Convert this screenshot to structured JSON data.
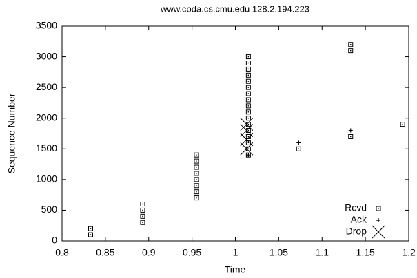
{
  "chart_data": {
    "type": "scatter",
    "title": "www.coda.cs.cmu.edu 128.2.194.223",
    "x_label": "Time",
    "y_label": "Sequence Number",
    "xlim": [
      0.8,
      1.2
    ],
    "xticks": [
      0.8,
      0.85,
      0.9,
      0.95,
      1,
      1.05,
      1.1,
      1.15,
      1.2
    ],
    "ylim": [
      0,
      3500
    ],
    "yticks": [
      0,
      500,
      1000,
      1500,
      2000,
      2500,
      3000,
      3500
    ],
    "legend": "bottom-right",
    "series": [
      {
        "name": "Rcvd",
        "marker": "square",
        "color": "#000000",
        "x": [
          0.833,
          0.833,
          0.893,
          0.893,
          0.893,
          0.893,
          0.955,
          0.955,
          0.955,
          0.955,
          0.955,
          0.955,
          0.955,
          0.955,
          1.015,
          1.015,
          1.015,
          1.015,
          1.015,
          1.015,
          1.015,
          1.015,
          1.015,
          1.015,
          1.015,
          1.015,
          1.015,
          1.015,
          1.015,
          1.015,
          1.015,
          1.073,
          1.133,
          1.133,
          1.133,
          1.193
        ],
        "values": [
          100,
          200,
          300,
          400,
          500,
          600,
          700,
          800,
          900,
          1000,
          1100,
          1200,
          1300,
          1400,
          1400,
          1500,
          1600,
          1700,
          1800,
          1900,
          2000,
          2100,
          2200,
          2300,
          2400,
          2500,
          2600,
          2700,
          2800,
          2900,
          3000,
          1500,
          1700,
          3100,
          3200,
          1900
        ]
      },
      {
        "name": "Ack",
        "marker": "plus",
        "color": "#000000",
        "x": [
          1.015,
          1.073,
          1.133
        ],
        "values": [
          1400,
          1600,
          1800
        ]
      },
      {
        "name": "Drop",
        "marker": "cross",
        "color": "#000000",
        "x": [
          1.013,
          1.013,
          1.013,
          1.013
        ],
        "values": [
          1500,
          1650,
          1800,
          1900
        ]
      }
    ]
  }
}
